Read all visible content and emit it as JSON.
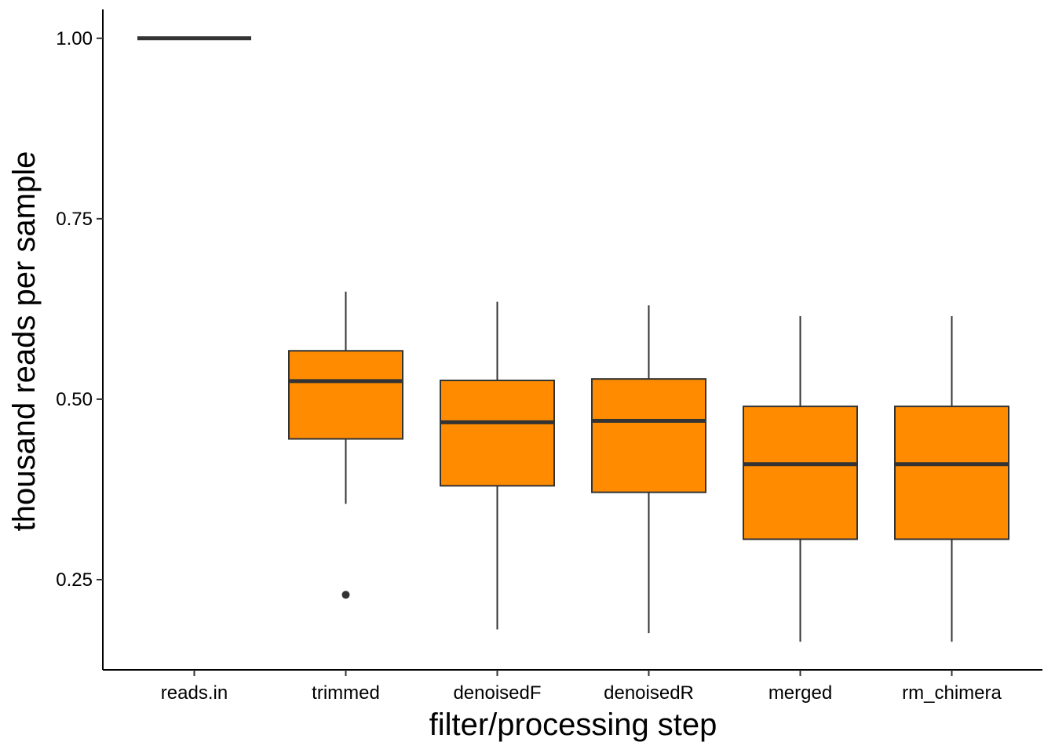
{
  "chart_data": {
    "type": "boxplot",
    "xlabel": "filter/processing step",
    "ylabel": "thousand reads per sample",
    "ylim": [
      0.125,
      1.04
    ],
    "yticks": [
      0.25,
      0.5,
      0.75,
      1.0
    ],
    "ytick_labels": [
      "0.25",
      "0.50",
      "0.75",
      "1.00"
    ],
    "categories": [
      "reads.in",
      "trimmed",
      "denoisedF",
      "denoisedR",
      "merged",
      "rm_chimera"
    ],
    "box_color": "#FF8C00",
    "line_color": "#333333",
    "grid": false,
    "legend": "none",
    "boxes": [
      {
        "category": "reads.in",
        "whisker_low": 1.0,
        "q1": 1.0,
        "median": 1.0,
        "q3": 1.0,
        "whisker_high": 1.0,
        "outliers": []
      },
      {
        "category": "trimmed",
        "whisker_low": 0.355,
        "q1": 0.445,
        "median": 0.525,
        "q3": 0.567,
        "whisker_high": 0.649,
        "outliers": [
          0.229
        ]
      },
      {
        "category": "denoisedF",
        "whisker_low": 0.181,
        "q1": 0.38,
        "median": 0.468,
        "q3": 0.526,
        "whisker_high": 0.635,
        "outliers": []
      },
      {
        "category": "denoisedR",
        "whisker_low": 0.176,
        "q1": 0.371,
        "median": 0.47,
        "q3": 0.528,
        "whisker_high": 0.63,
        "outliers": []
      },
      {
        "category": "merged",
        "whisker_low": 0.164,
        "q1": 0.306,
        "median": 0.41,
        "q3": 0.49,
        "whisker_high": 0.615,
        "outliers": []
      },
      {
        "category": "rm_chimera",
        "whisker_low": 0.164,
        "q1": 0.306,
        "median": 0.41,
        "q3": 0.49,
        "whisker_high": 0.615,
        "outliers": []
      }
    ]
  }
}
